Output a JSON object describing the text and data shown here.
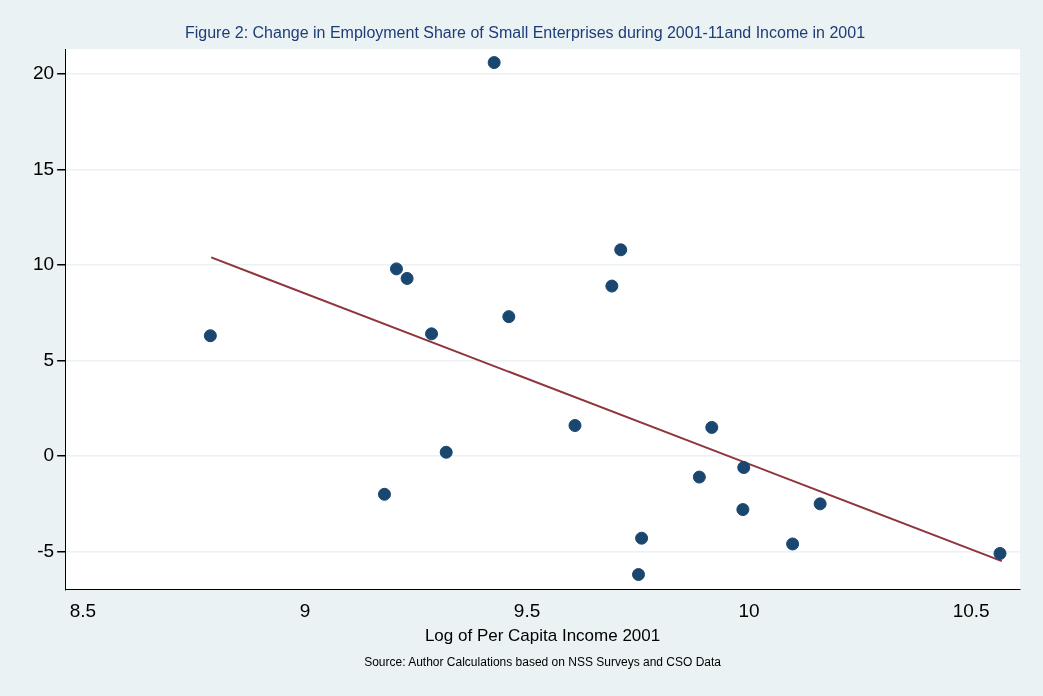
{
  "chart_data": {
    "type": "scatter",
    "title": "Figure 2: Change in Employment Share of Small Enterprises during 2001-11and Income in 2001",
    "xlabel": "Log of Per Capita Income 2001",
    "annotations": [
      "Source: Author Calculations based on NSS Surveys and CSO Data"
    ],
    "xlim": [
      8.46,
      10.61
    ],
    "xticks": [
      {
        "value": 8.5,
        "label": "8.5"
      },
      9,
      {
        "value": 9.5,
        "label": "9.5"
      },
      10,
      {
        "value": 10.5,
        "label": "10.5"
      }
    ],
    "ylim": [
      -7,
      21.3
    ],
    "yticks": [
      -5,
      0,
      5,
      10,
      15,
      20
    ],
    "grid": "y",
    "legend": false,
    "series": [
      {
        "type": "scatter",
        "color": "#1a476f",
        "marker": "circle",
        "x": [
          8.787,
          9.206,
          9.23,
          9.285,
          9.179,
          9.318,
          9.426,
          9.459,
          9.608,
          9.691,
          9.711,
          9.758,
          9.751,
          9.888,
          9.916,
          9.988,
          9.986,
          10.098,
          10.16,
          10.565
        ],
        "values": [
          6.3,
          9.8,
          9.3,
          6.4,
          -2.0,
          0.2,
          20.6,
          7.3,
          1.6,
          8.9,
          10.8,
          -4.3,
          -6.2,
          -1.1,
          1.5,
          -0.6,
          -2.8,
          -4.6,
          -2.5,
          -5.1
        ]
      },
      {
        "type": "line",
        "color": "#90353b",
        "marker": "none",
        "x": [
          8.789,
          10.569
        ],
        "values": [
          10.4,
          -5.5
        ]
      }
    ]
  }
}
